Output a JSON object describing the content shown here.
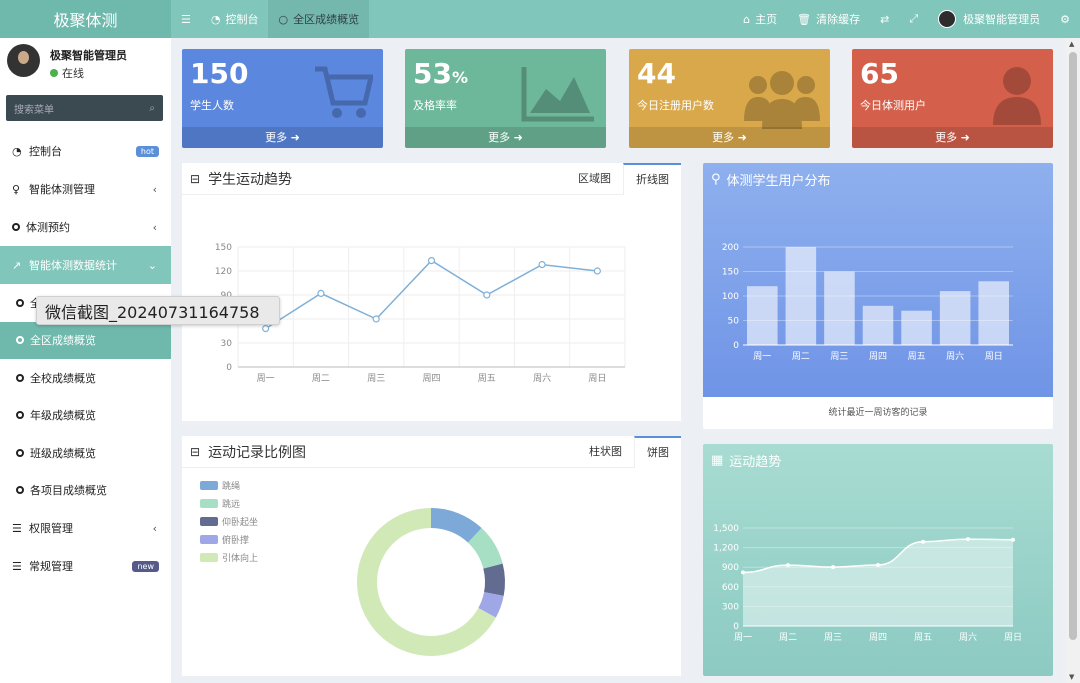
{
  "app": {
    "title": "极聚体测"
  },
  "topbar": {
    "menu_icon": "menu-icon",
    "tabs": [
      {
        "label": "控制台",
        "icon": "dashboard-icon"
      },
      {
        "label": "全区成绩概览",
        "icon": "circle-icon"
      }
    ],
    "right": {
      "home": "主页",
      "clear_cache": "清除缓存",
      "user": "极聚智能管理员"
    }
  },
  "sidebar": {
    "user": {
      "name": "极聚智能管理员",
      "status": "在线"
    },
    "search": {
      "placeholder": "搜索菜单"
    },
    "items": [
      {
        "label": "控制台",
        "badge": "hot"
      },
      {
        "label": "智能体测管理"
      },
      {
        "label": "体测预约"
      },
      {
        "label": "智能体测数据统计"
      },
      {
        "label": "全"
      },
      {
        "label": "全区成绩概览"
      },
      {
        "label": "全校成绩概览"
      },
      {
        "label": "年级成绩概览"
      },
      {
        "label": "班级成绩概览"
      },
      {
        "label": "各项目成绩概览"
      },
      {
        "label": "权限管理"
      },
      {
        "label": "常规管理",
        "badge": "new"
      }
    ]
  },
  "tooltip": "微信截图_20240731164758",
  "stats": [
    {
      "value": "150",
      "unit": "",
      "label": "学生人数",
      "more": "更多",
      "color": "#5b87de"
    },
    {
      "value": "53",
      "unit": "%",
      "label": "及格率率",
      "more": "更多",
      "color": "#6db79a"
    },
    {
      "value": "44",
      "unit": "",
      "label": "今日注册用户数",
      "more": "更多",
      "color": "#d9a84a"
    },
    {
      "value": "65",
      "unit": "",
      "label": "今日体测用户",
      "more": "更多",
      "color": "#d4604c"
    }
  ],
  "trend_panel": {
    "title": "学生运动趋势",
    "tabs": [
      "区域图",
      "折线图"
    ]
  },
  "ratio_panel": {
    "title": "运动记录比例图",
    "tabs": [
      "柱状图",
      "饼图"
    ]
  },
  "user_dist_panel": {
    "title": "体测学生用户分布",
    "footer": "统计最近一周访客的记录"
  },
  "motion_panel": {
    "title": "运动趋势"
  },
  "chart_data": [
    {
      "type": "line",
      "categories": [
        "周一",
        "周二",
        "周三",
        "周四",
        "周五",
        "周六",
        "周日"
      ],
      "values": [
        48,
        92,
        60,
        133,
        90,
        128,
        120
      ],
      "yticks": [
        0,
        30,
        60,
        90,
        120,
        150
      ],
      "ylim": [
        0,
        150
      ],
      "grid": true
    },
    {
      "type": "pie",
      "categories": [
        "跳绳",
        "跳远",
        "仰卧起坐",
        "俯卧撑",
        "引体向上"
      ],
      "values": [
        12,
        9,
        7,
        5,
        67
      ],
      "colors": [
        "#7ca9d8",
        "#a7dfc4",
        "#626c91",
        "#a0a7e6",
        "#d1e9b7"
      ]
    },
    {
      "type": "bar",
      "categories": [
        "周一",
        "周二",
        "周三",
        "周四",
        "周五",
        "周六",
        "周日"
      ],
      "values": [
        120,
        200,
        150,
        80,
        70,
        110,
        130
      ],
      "yticks": [
        0,
        50,
        100,
        150,
        200
      ],
      "ylim": [
        0,
        200
      ],
      "grid": true
    },
    {
      "type": "area",
      "categories": [
        "周一",
        "周二",
        "周三",
        "周四",
        "周五",
        "周六",
        "周日"
      ],
      "values": [
        820,
        932,
        901,
        934,
        1290,
        1330,
        1320
      ],
      "yticks": [
        "0",
        "300",
        "600",
        "900",
        "1,200",
        "1,500"
      ],
      "ylim": [
        0,
        1500
      ],
      "grid": true
    }
  ]
}
